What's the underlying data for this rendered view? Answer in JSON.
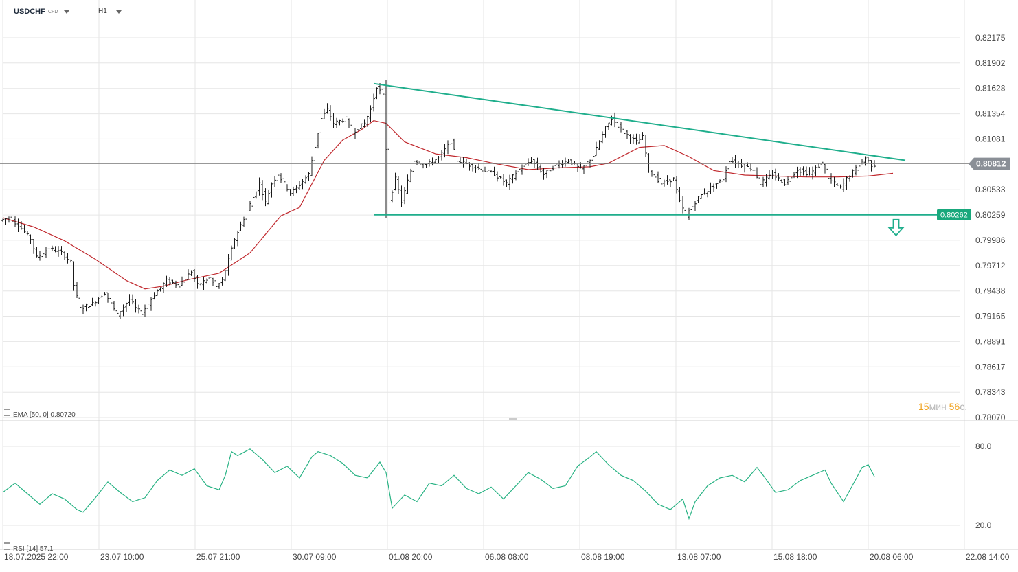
{
  "header": {
    "symbol": "USDCHF",
    "symbol_type": "CFD",
    "timeframe": "H1"
  },
  "colors": {
    "grid": "#e6e6e6",
    "candle": "#1a1a1a",
    "ema": "#c0282d",
    "trendline": "#1fae8c",
    "rsi": "#27b283",
    "current_price_bg": "#8a8f96",
    "support_bg": "#19a87c",
    "timer_number": "#f0a21e"
  },
  "timer": {
    "minutes": "15",
    "minutes_unit": "мин",
    "seconds": "56",
    "seconds_unit": "с."
  },
  "chart_data": [
    {
      "type": "candlestick",
      "panel": "price",
      "instrument": "USDCHF",
      "timeframe": "H1",
      "y_ticks": [
        "0.82175",
        "0.81902",
        "0.81628",
        "0.81354",
        "0.81081",
        "0.80533",
        "0.80259",
        "0.79986",
        "0.79712",
        "0.79438",
        "0.79165",
        "0.78891",
        "0.78617",
        "0.78343",
        "0.78070"
      ],
      "ylim": [
        0.7807,
        0.8245
      ],
      "x_ticks": [
        "18.07.2025 22:00",
        "23.07 10:00",
        "25.07 21:00",
        "30.07 09:00",
        "01.08 20:00",
        "06.08 08:00",
        "08.08 19:00",
        "13.08 07:00",
        "15.08 18:00",
        "20.08 06:00",
        "22.08 14:00"
      ],
      "x_range_bars": [
        0,
        280
      ],
      "grid": true,
      "current_price": "0.80812",
      "support_label": "0.80262",
      "annotations": {
        "descending_resistance": {
          "from": {
            "bar": 120,
            "price": 0.8168
          },
          "to": {
            "bar": 292,
            "price": 0.8085
          }
        },
        "horizontal_support": {
          "from": {
            "bar": 120,
            "price": 0.80262
          },
          "to": {
            "bar": 311,
            "price": 0.80262
          }
        },
        "breakdown_arrow": {
          "bar": 289,
          "price": 0.8012,
          "direction": "down"
        }
      },
      "series": [
        {
          "name": "EMA [50, 0]",
          "value": "0.80720",
          "indicator": "EMA",
          "points_bar_price": [
            [
              0,
              0.8023
            ],
            [
              10,
              0.8013
            ],
            [
              20,
              0.7998
            ],
            [
              30,
              0.7978
            ],
            [
              40,
              0.7955
            ],
            [
              46,
              0.7946
            ],
            [
              52,
              0.7949
            ],
            [
              60,
              0.7956
            ],
            [
              70,
              0.7963
            ],
            [
              80,
              0.7985
            ],
            [
              90,
              0.8025
            ],
            [
              96,
              0.8034
            ],
            [
              104,
              0.8085
            ],
            [
              110,
              0.8107
            ],
            [
              116,
              0.8118
            ],
            [
              120,
              0.8128
            ],
            [
              124,
              0.8125
            ],
            [
              130,
              0.8105
            ],
            [
              140,
              0.8092
            ],
            [
              150,
              0.8088
            ],
            [
              160,
              0.8081
            ],
            [
              170,
              0.8075
            ],
            [
              180,
              0.8077
            ],
            [
              190,
              0.8078
            ],
            [
              196,
              0.8082
            ],
            [
              206,
              0.8099
            ],
            [
              214,
              0.8101
            ],
            [
              222,
              0.8089
            ],
            [
              230,
              0.8074
            ],
            [
              240,
              0.8069
            ],
            [
              250,
              0.8068
            ],
            [
              260,
              0.8067
            ],
            [
              270,
              0.8067
            ],
            [
              280,
              0.8068
            ],
            [
              288,
              0.8071
            ]
          ]
        }
      ],
      "price_path_bar_price": [
        [
          0,
          0.802
        ],
        [
          3,
          0.8023
        ],
        [
          6,
          0.8015
        ],
        [
          10,
          0.8
        ],
        [
          12,
          0.798
        ],
        [
          16,
          0.799
        ],
        [
          20,
          0.7985
        ],
        [
          23,
          0.7975
        ],
        [
          24,
          0.795
        ],
        [
          26,
          0.7925
        ],
        [
          30,
          0.793
        ],
        [
          34,
          0.7942
        ],
        [
          36,
          0.793
        ],
        [
          38,
          0.7918
        ],
        [
          42,
          0.7935
        ],
        [
          44,
          0.7925
        ],
        [
          46,
          0.792
        ],
        [
          50,
          0.794
        ],
        [
          54,
          0.7955
        ],
        [
          58,
          0.795
        ],
        [
          62,
          0.7965
        ],
        [
          64,
          0.795
        ],
        [
          68,
          0.7958
        ],
        [
          70,
          0.7948
        ],
        [
          72,
          0.7955
        ],
        [
          76,
          0.8
        ],
        [
          80,
          0.803
        ],
        [
          84,
          0.806
        ],
        [
          86,
          0.804
        ],
        [
          88,
          0.806
        ],
        [
          90,
          0.807
        ],
        [
          94,
          0.805
        ],
        [
          96,
          0.8055
        ],
        [
          100,
          0.807
        ],
        [
          104,
          0.813
        ],
        [
          106,
          0.814
        ],
        [
          108,
          0.8125
        ],
        [
          112,
          0.813
        ],
        [
          114,
          0.8115
        ],
        [
          118,
          0.8125
        ],
        [
          120,
          0.814
        ],
        [
          122,
          0.8165
        ],
        [
          124,
          0.8155
        ],
        [
          126,
          0.804
        ],
        [
          128,
          0.8065
        ],
        [
          130,
          0.804
        ],
        [
          134,
          0.8085
        ],
        [
          138,
          0.808
        ],
        [
          142,
          0.8088
        ],
        [
          146,
          0.8105
        ],
        [
          148,
          0.8085
        ],
        [
          152,
          0.808
        ],
        [
          156,
          0.8075
        ],
        [
          160,
          0.807
        ],
        [
          164,
          0.806
        ],
        [
          168,
          0.8075
        ],
        [
          172,
          0.8085
        ],
        [
          176,
          0.807
        ],
        [
          180,
          0.808
        ],
        [
          184,
          0.8085
        ],
        [
          188,
          0.8075
        ],
        [
          192,
          0.809
        ],
        [
          196,
          0.812
        ],
        [
          198,
          0.813
        ],
        [
          202,
          0.8115
        ],
        [
          206,
          0.8105
        ],
        [
          208,
          0.811
        ],
        [
          210,
          0.8075
        ],
        [
          214,
          0.806
        ],
        [
          218,
          0.8065
        ],
        [
          220,
          0.804
        ],
        [
          222,
          0.8025
        ],
        [
          226,
          0.8045
        ],
        [
          230,
          0.8055
        ],
        [
          234,
          0.8065
        ],
        [
          236,
          0.8085
        ],
        [
          240,
          0.808
        ],
        [
          244,
          0.8075
        ],
        [
          246,
          0.806
        ],
        [
          250,
          0.807
        ],
        [
          254,
          0.806
        ],
        [
          258,
          0.8075
        ],
        [
          262,
          0.807
        ],
        [
          266,
          0.8082
        ],
        [
          268,
          0.8065
        ],
        [
          272,
          0.8055
        ],
        [
          274,
          0.8065
        ],
        [
          278,
          0.808
        ],
        [
          280,
          0.8088
        ],
        [
          282,
          0.808
        ]
      ]
    },
    {
      "type": "line",
      "panel": "rsi",
      "indicator": "RSI [14]",
      "value": "57.1",
      "y_ticks": [
        "80.0",
        "20.0"
      ],
      "ylim": [
        13,
        88
      ],
      "grid": true,
      "series": [
        {
          "name": "RSI [14]",
          "points_bar_value": [
            [
              0,
              45
            ],
            [
              4,
              52
            ],
            [
              8,
              44
            ],
            [
              12,
              36
            ],
            [
              16,
              44
            ],
            [
              20,
              40
            ],
            [
              24,
              32
            ],
            [
              26,
              30
            ],
            [
              30,
              41
            ],
            [
              34,
              53
            ],
            [
              38,
              45
            ],
            [
              42,
              38
            ],
            [
              46,
              41
            ],
            [
              50,
              54
            ],
            [
              54,
              62
            ],
            [
              58,
              58
            ],
            [
              62,
              63
            ],
            [
              66,
              50
            ],
            [
              70,
              47
            ],
            [
              72,
              58
            ],
            [
              74,
              76
            ],
            [
              76,
              73
            ],
            [
              80,
              78
            ],
            [
              84,
              70
            ],
            [
              88,
              60
            ],
            [
              92,
              65
            ],
            [
              96,
              56
            ],
            [
              100,
              72
            ],
            [
              102,
              76
            ],
            [
              106,
              73
            ],
            [
              110,
              67
            ],
            [
              114,
              58
            ],
            [
              118,
              56
            ],
            [
              122,
              68
            ],
            [
              124,
              60
            ],
            [
              126,
              33
            ],
            [
              130,
              43
            ],
            [
              134,
              38
            ],
            [
              138,
              52
            ],
            [
              142,
              50
            ],
            [
              146,
              58
            ],
            [
              150,
              48
            ],
            [
              154,
              44
            ],
            [
              158,
              49
            ],
            [
              162,
              40
            ],
            [
              166,
              50
            ],
            [
              170,
              60
            ],
            [
              174,
              55
            ],
            [
              178,
              48
            ],
            [
              182,
              50
            ],
            [
              186,
              65
            ],
            [
              190,
              72
            ],
            [
              192,
              76
            ],
            [
              196,
              66
            ],
            [
              200,
              58
            ],
            [
              204,
              54
            ],
            [
              208,
              46
            ],
            [
              212,
              36
            ],
            [
              216,
              32
            ],
            [
              220,
              40
            ],
            [
              222,
              25
            ],
            [
              224,
              38
            ],
            [
              228,
              50
            ],
            [
              232,
              56
            ],
            [
              236,
              58
            ],
            [
              240,
              53
            ],
            [
              244,
              64
            ],
            [
              246,
              58
            ],
            [
              250,
              45
            ],
            [
              254,
              47
            ],
            [
              258,
              54
            ],
            [
              262,
              58
            ],
            [
              266,
              62
            ],
            [
              268,
              52
            ],
            [
              272,
              38
            ],
            [
              276,
              55
            ],
            [
              278,
              64
            ],
            [
              280,
              66
            ],
            [
              282,
              57
            ]
          ]
        }
      ]
    }
  ]
}
